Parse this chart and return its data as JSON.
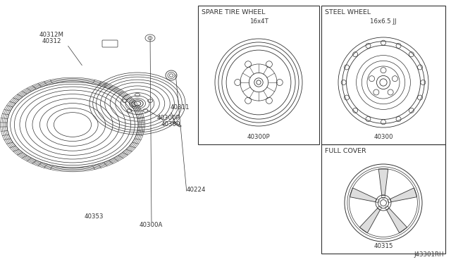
{
  "bg_color": "#ffffff",
  "line_color": "#333333",
  "diagram_id": "J43301RH",
  "spare_title": "SPARE TIRE WHEEL",
  "spare_size": "16x4T",
  "spare_label": "40300P",
  "steel_title": "STEEL WHEEL",
  "steel_size": "16x6.5 JJ",
  "steel_label": "40300",
  "cover_title": "FULL COVER",
  "cover_label": "40315",
  "label_40312M": "40312M",
  "label_40312": "40312",
  "label_40311": "40311",
  "label_40300P": "40300P",
  "label_40300": "40300",
  "label_40224": "40224",
  "label_40353": "40353",
  "label_40300A": "40300A"
}
